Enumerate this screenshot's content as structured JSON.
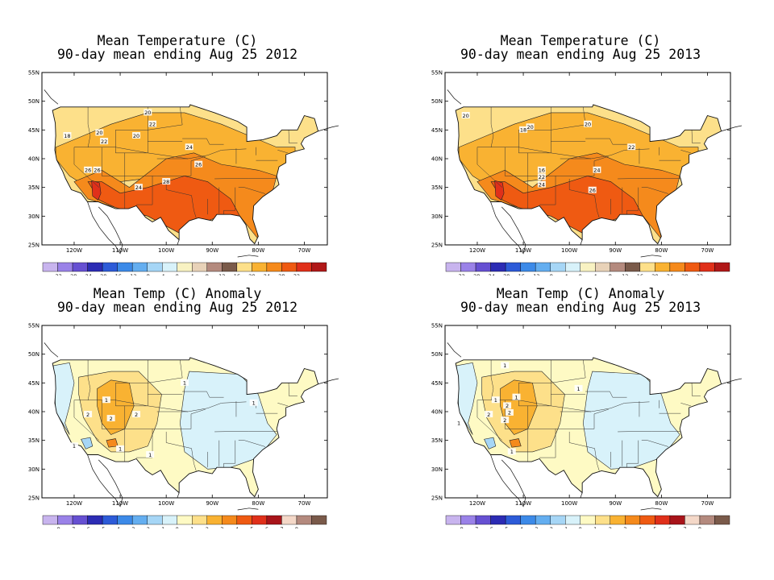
{
  "panels": [
    {
      "id": "mean-temp-2012",
      "title_line1": "Mean Temperature (C)",
      "title_line2": "90-day mean ending Aug 25 2012",
      "kind": "temperature",
      "contour_labels": [
        "18",
        "20",
        "20",
        "22",
        "22",
        "20",
        "24",
        "26",
        "28",
        "26",
        "24",
        "26"
      ]
    },
    {
      "id": "mean-temp-2013",
      "title_line1": "Mean Temperature (C)",
      "title_line2": "90-day mean ending Aug 25 2013",
      "kind": "temperature",
      "contour_labels": [
        "20",
        "18",
        "20",
        "20",
        "22",
        "16",
        "24",
        "22",
        "24",
        "26"
      ]
    },
    {
      "id": "anomaly-2012",
      "title_line1": "Mean Temp (C) Anomaly",
      "title_line2": "90-day mean ending Aug 25 2012",
      "kind": "anomaly",
      "contour_labels": [
        "1",
        "1",
        "1",
        "2",
        "2",
        "2",
        "1",
        "1",
        "1"
      ]
    },
    {
      "id": "anomaly-2013",
      "title_line1": "Mean Temp (C) Anomaly",
      "title_line2": "90-day mean ending Aug 25 2013",
      "kind": "anomaly",
      "contour_labels": [
        "1",
        "1",
        "1",
        "2",
        "2",
        "2",
        "1",
        "1",
        "2",
        "1"
      ]
    }
  ],
  "map": {
    "lat_ticks": [
      "55N",
      "50N",
      "45N",
      "40N",
      "35N",
      "30N",
      "25N"
    ],
    "lon_ticks": [
      "120W",
      "110W",
      "100W",
      "90W",
      "80W",
      "70W"
    ]
  },
  "legends": {
    "temperature": {
      "labels": [
        "-32",
        "-28",
        "-24",
        "-20",
        "-16",
        "-12",
        "-8",
        "-4",
        "0",
        "4",
        "8",
        "12",
        "16",
        "20",
        "24",
        "28",
        "32"
      ],
      "colors": [
        "#c8b4ee",
        "#9a82e8",
        "#6650d2",
        "#2c2cb4",
        "#2d5bd8",
        "#3c8ae8",
        "#64aef0",
        "#a6d6f6",
        "#d8f2fa",
        "#f8f2c2",
        "#e8d2b8",
        "#b48a7e",
        "#7a5a4a",
        "#fde08a",
        "#f9b232",
        "#f58a1c",
        "#ef5a12",
        "#e0301a",
        "#b01818"
      ]
    },
    "anomaly": {
      "labels": [
        "-8",
        "-7",
        "-6",
        "-5",
        "-4",
        "-3",
        "-2",
        "-1",
        "0",
        "1",
        "2",
        "3",
        "4",
        "5",
        "6",
        "7",
        "8"
      ],
      "colors": [
        "#c8b4ee",
        "#9a82e8",
        "#6650d2",
        "#2c2cb4",
        "#2d5bd8",
        "#3c8ae8",
        "#64aef0",
        "#a6d6f6",
        "#d8f2fa",
        "#fefac4",
        "#fde08a",
        "#f9b232",
        "#f58a1c",
        "#ef5a12",
        "#e0301a",
        "#a8141a",
        "#f4d8c8",
        "#b48a7e",
        "#7a5a4a"
      ]
    }
  },
  "colors": {
    "temperature": {
      "c16": "#fde08a",
      "c20": "#f9b232",
      "c24": "#f58a1c",
      "c28": "#ef5a12",
      "c32": "#e0301a"
    },
    "anomaly": {
      "n1": "#d8f2fa",
      "n2": "#a6d6f6",
      "n3": "#64aef0",
      "p0": "#fefac4",
      "p1": "#fde08a",
      "p2": "#f9b232",
      "p3": "#f58a1c"
    }
  }
}
